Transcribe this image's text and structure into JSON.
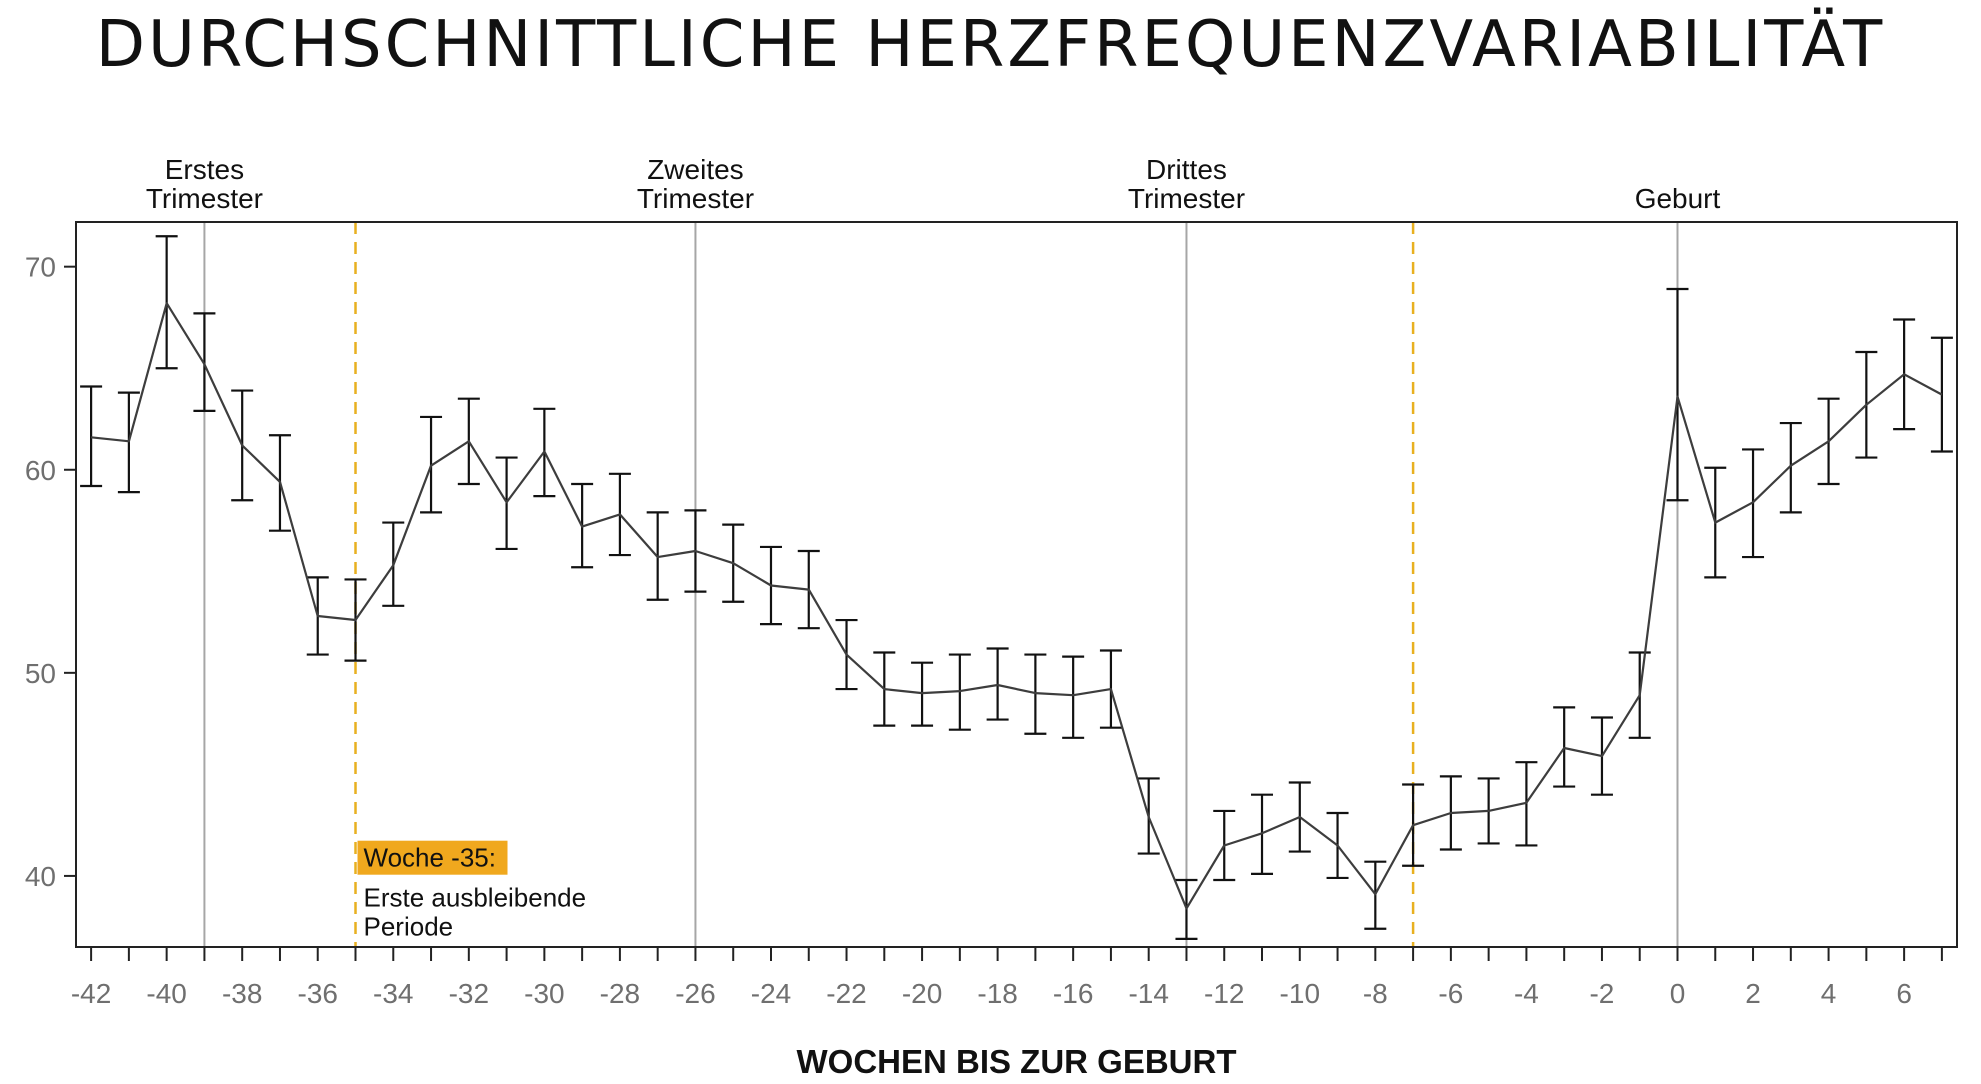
{
  "chart_data": {
    "type": "line",
    "title": "DURCHSCHNITTLICHE HERZFREQUENZVARIABILITÄT",
    "xlabel": "WOCHEN BIS ZUR GEBURT",
    "ylabel": "",
    "xlim": [
      -42.4,
      7.4
    ],
    "ylim": [
      36.5,
      72.2
    ],
    "x_ticks": [
      -42,
      -40,
      -38,
      -36,
      -34,
      -32,
      -30,
      -28,
      -26,
      -24,
      -22,
      -20,
      -18,
      -16,
      -14,
      -12,
      -10,
      -8,
      -6,
      -4,
      -2,
      0,
      2,
      4,
      6
    ],
    "y_ticks": [
      40,
      50,
      60,
      70
    ],
    "grid": false,
    "series": [
      {
        "x": [
          -42,
          -41,
          -40,
          -39,
          -38,
          -37,
          -36,
          -35,
          -34,
          -33,
          -32,
          -31,
          -30,
          -29,
          -28,
          -27,
          -26,
          -25,
          -24,
          -23,
          -22,
          -21,
          -20,
          -19,
          -18,
          -17,
          -16,
          -15,
          -14,
          -13,
          -12,
          -11,
          -10,
          -9,
          -8,
          -7,
          -6,
          -5,
          -4,
          -3,
          -2,
          -1,
          0,
          1,
          2,
          3,
          4,
          5,
          6,
          7
        ],
        "y": [
          61.6,
          61.4,
          68.2,
          65.2,
          61.2,
          59.4,
          52.8,
          52.6,
          55.3,
          60.2,
          61.4,
          58.4,
          60.9,
          57.2,
          57.8,
          55.7,
          56.0,
          55.4,
          54.3,
          54.1,
          50.9,
          49.2,
          49.0,
          49.1,
          49.4,
          49.0,
          48.9,
          49.2,
          42.9,
          38.4,
          41.5,
          42.1,
          42.9,
          41.5,
          39.1,
          42.5,
          43.1,
          43.2,
          43.6,
          46.3,
          45.9,
          48.9,
          63.6,
          57.4,
          58.4,
          60.2,
          61.4,
          63.2,
          64.7,
          63.7
        ],
        "err_low": [
          59.2,
          58.9,
          65.0,
          62.9,
          58.5,
          57.0,
          50.9,
          50.6,
          53.3,
          57.9,
          59.3,
          56.1,
          58.7,
          55.2,
          55.8,
          53.6,
          54.0,
          53.5,
          52.4,
          52.2,
          49.2,
          47.4,
          47.4,
          47.2,
          47.7,
          47.0,
          46.8,
          47.3,
          41.1,
          36.9,
          39.8,
          40.1,
          41.2,
          39.9,
          37.4,
          40.5,
          41.3,
          41.6,
          41.5,
          44.4,
          44.0,
          46.8,
          58.5,
          54.7,
          55.7,
          57.9,
          59.3,
          60.6,
          62.0,
          60.9
        ],
        "err_high": [
          64.1,
          63.8,
          71.5,
          67.7,
          63.9,
          61.7,
          54.7,
          54.6,
          57.4,
          62.6,
          63.5,
          60.6,
          63.0,
          59.3,
          59.8,
          57.9,
          58.0,
          57.3,
          56.2,
          56.0,
          52.6,
          51.0,
          50.5,
          50.9,
          51.2,
          50.9,
          50.8,
          51.1,
          44.8,
          39.8,
          43.2,
          44.0,
          44.6,
          43.1,
          40.7,
          44.5,
          44.9,
          44.8,
          45.6,
          48.3,
          47.8,
          51.0,
          68.9,
          60.1,
          61.0,
          62.3,
          63.5,
          65.8,
          67.4,
          66.5
        ]
      }
    ],
    "reference_lines": [
      {
        "x": -39,
        "style": "solid",
        "label_lines": [
          "Erstes",
          "Trimester"
        ]
      },
      {
        "x": -26,
        "style": "solid",
        "label_lines": [
          "Zweites",
          "Trimester"
        ]
      },
      {
        "x": -13,
        "style": "solid",
        "label_lines": [
          "Drittes",
          "Trimester"
        ]
      },
      {
        "x": 0,
        "style": "solid",
        "label_lines": [
          "Geburt"
        ]
      },
      {
        "x": -35,
        "style": "dashed",
        "label_lines": []
      },
      {
        "x": -7,
        "style": "dashed",
        "label_lines": []
      }
    ],
    "annotation": {
      "x": -35,
      "y": 40.7,
      "badge": "Woche -35:",
      "text_lines": [
        "Erste ausbleibende",
        "Periode"
      ]
    },
    "colors": {
      "line": "#3d3d3d",
      "error_bar": "#111111",
      "reference_line": "#a6a6a6",
      "dashed_line": "#e8b020",
      "badge_bg": "#f0a81e",
      "tick_label": "#6f6f6f",
      "frame": "#222222"
    }
  }
}
